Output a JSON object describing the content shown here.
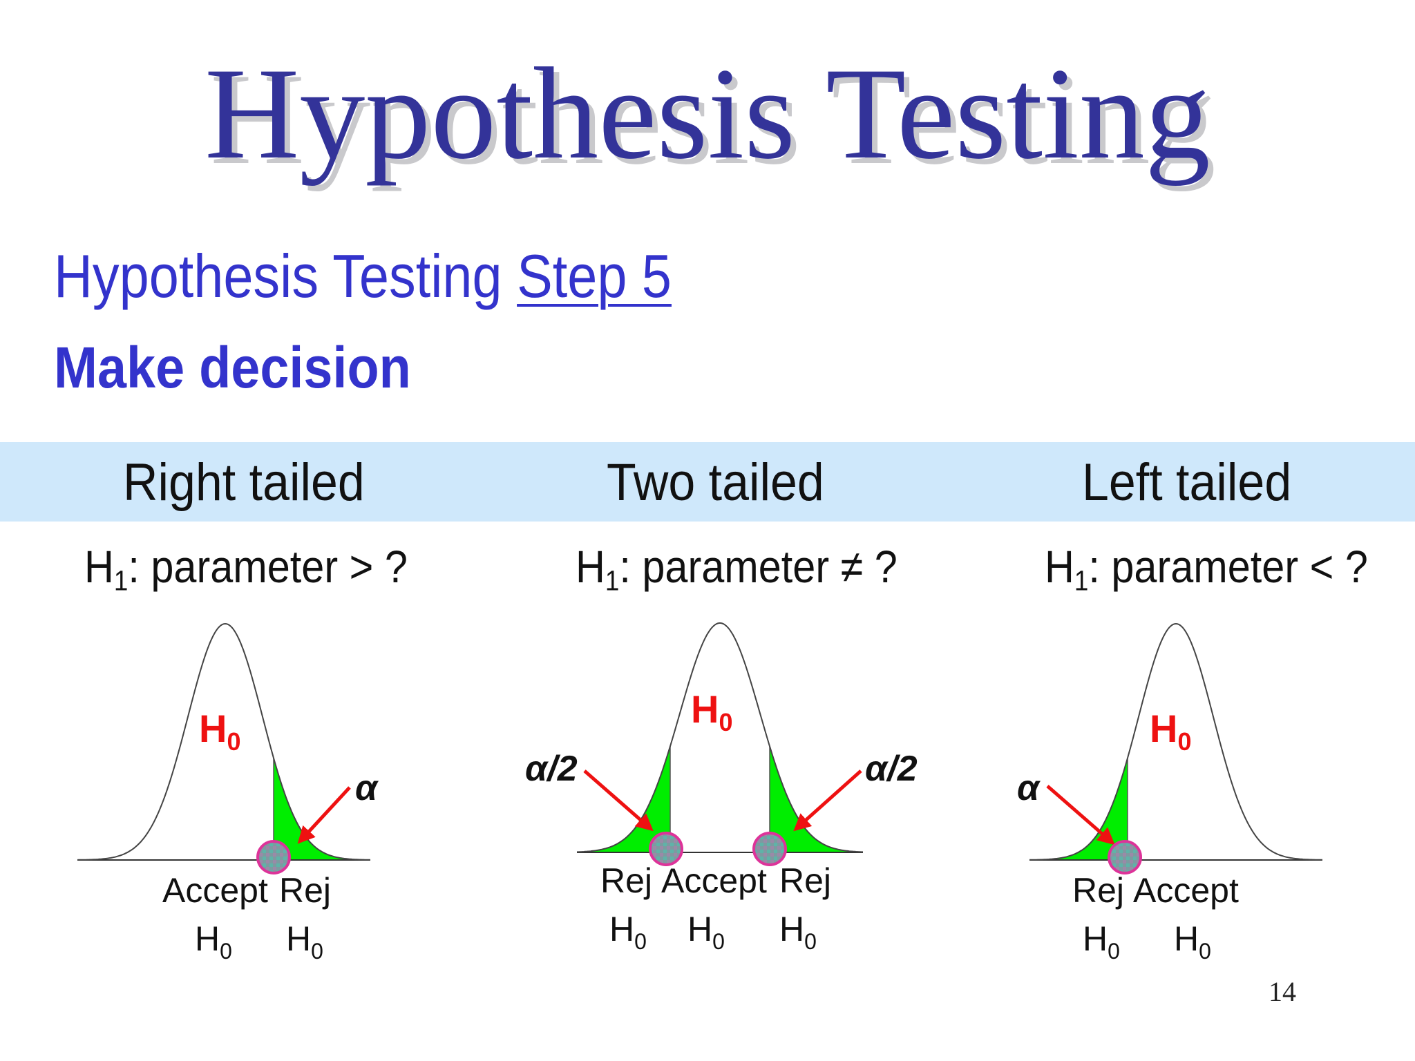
{
  "slide": {
    "title": "Hypothesis Testing",
    "subtitle_prefix": "Hypothesis Testing",
    "subtitle_step": "Step 5",
    "heading": "Make decision",
    "page_number": "14"
  },
  "panels": [
    {
      "tail": "Right tailed",
      "h1_sym": "H",
      "h1_sub": "1",
      "h1_rel": ": parameter > ?",
      "h0_sym": "H",
      "h0_sub": "0",
      "alpha": "α",
      "bottom_words": [
        "Accept",
        "Rej"
      ],
      "h0_label_sym": "H",
      "h0_label_sub": "0"
    },
    {
      "tail": "Two tailed",
      "h1_sym": "H",
      "h1_sub": "1",
      "h1_rel": ": parameter ≠ ?",
      "h0_sym": "H",
      "h0_sub": "0",
      "alpha_left": "α/2",
      "alpha_right": "α/2",
      "bottom_words": [
        "Rej",
        "Accept",
        "Rej"
      ],
      "h0_label_sym": "H",
      "h0_label_sub": "0"
    },
    {
      "tail": "Left tailed",
      "h1_sym": "H",
      "h1_sub": "1",
      "h1_rel": ": parameter < ?",
      "h0_sym": "H",
      "h0_sub": "0",
      "alpha": "α",
      "bottom_words": [
        "Rej",
        "Accept"
      ],
      "h0_label_sym": "H",
      "h0_label_sub": "0"
    }
  ],
  "colors": {
    "title": "#333399",
    "heading": "#3333cc",
    "band": "#cfe8fb",
    "rejection_region": "#00ee00",
    "arrow": "#ee1111",
    "h0_label": "#ee1111",
    "marker_fill": "#7d9aa0",
    "marker_ring": "#dd3399"
  }
}
